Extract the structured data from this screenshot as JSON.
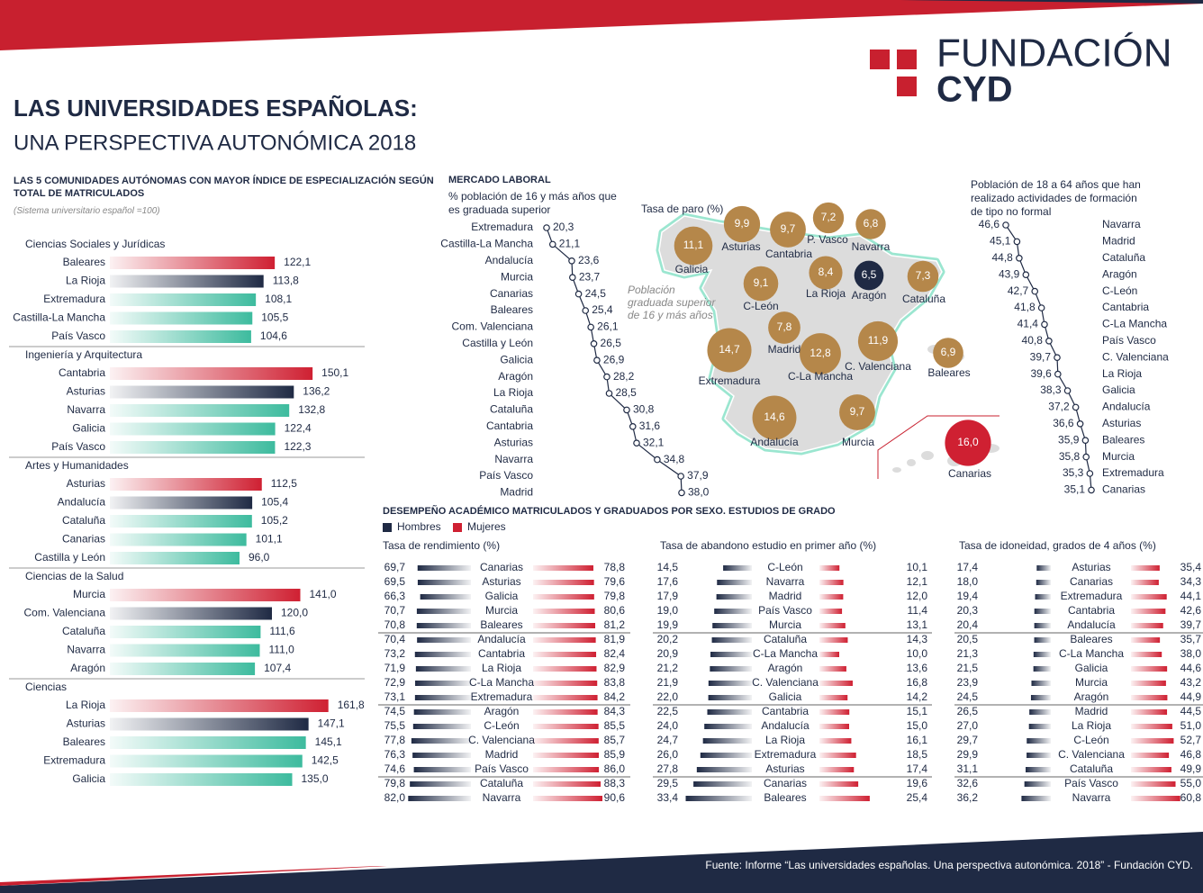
{
  "header": {
    "logo_line1": "FUNDACIÓN",
    "logo_line2": "CYD",
    "title": "LAS UNIVERSIDADES ESPAÑOLAS:",
    "subtitle": "UNA PERSPECTIVA AUTONÓMICA 2018"
  },
  "footer": {
    "source": "Fuente: Informe “Las universidades españolas. Una perspectiva autonómica. 2018” - Fundación CYD."
  },
  "chart_data": [
    {
      "type": "bar",
      "title": "LAS 5 COMUNIDADES AUTÓNOMAS CON MAYOR ÍNDICE DE ESPECIALIZACIÓN SEGÚN TOTAL DE MATRICULADOS",
      "note": "(Sistema universitario español =100)",
      "colors": [
        "#cf2032",
        "#1f2a44",
        "#3dbb9e",
        "#3dbb9e",
        "#3dbb9e"
      ],
      "groups": [
        {
          "name": "Ciencias Sociales y Jurídicas",
          "categories": [
            "Baleares",
            "La Rioja",
            "Extremadura",
            "Castilla-La Mancha",
            "País Vasco"
          ],
          "values": [
            122.1,
            113.8,
            108.1,
            105.5,
            104.6
          ],
          "value_labels": [
            "122,1",
            "113,8",
            "108,1",
            "105,5",
            "104,6"
          ]
        },
        {
          "name": "Ingeniería y Arquitectura",
          "categories": [
            "Cantabria",
            "Asturias",
            "Navarra",
            "Galicia",
            "País Vasco"
          ],
          "values": [
            150.1,
            136.2,
            132.8,
            122.4,
            122.3
          ],
          "value_labels": [
            "150,1",
            "136,2",
            "132,8",
            "122,4",
            "122,3"
          ]
        },
        {
          "name": "Artes y Humanidades",
          "categories": [
            "Asturias",
            "Andalucía",
            "Cataluña",
            "Canarias",
            "Castilla y León"
          ],
          "values": [
            112.5,
            105.4,
            105.2,
            101.1,
            96.0
          ],
          "value_labels": [
            "112,5",
            "105,4",
            "105,2",
            "101,1",
            "96,0"
          ]
        },
        {
          "name": "Ciencias de la Salud",
          "categories": [
            "Murcia",
            "Com. Valenciana",
            "Cataluña",
            "Navarra",
            "Aragón"
          ],
          "values": [
            141.0,
            120.0,
            111.6,
            111.0,
            107.4
          ],
          "value_labels": [
            "141,0",
            "120,0",
            "111,6",
            "111,0",
            "107,4"
          ]
        },
        {
          "name": "Ciencias",
          "categories": [
            "La Rioja",
            "Asturias",
            "Baleares",
            "Extremadura",
            "Galicia"
          ],
          "values": [
            161.8,
            147.1,
            145.1,
            142.5,
            135.0
          ],
          "value_labels": [
            "161,8",
            "147,1",
            "145,1",
            "142,5",
            "135,0"
          ]
        }
      ]
    },
    {
      "type": "line",
      "title": "MERCADO LABORAL",
      "subtitle": "% población de 16 y más años que es graduada superior",
      "color": "#1f2a44",
      "categories": [
        "Extremadura",
        "Castilla-La Mancha",
        "Andalucía",
        "Murcia",
        "Canarias",
        "Baleares",
        "Com. Valenciana",
        "Castilla y León",
        "Galicia",
        "Aragón",
        "La Rioja",
        "Cataluña",
        "Cantabria",
        "Asturias",
        "Navarra",
        "País Vasco",
        "Madrid"
      ],
      "values": [
        20.3,
        21.1,
        23.6,
        23.7,
        24.5,
        25.4,
        26.1,
        26.5,
        26.9,
        28.2,
        28.5,
        30.8,
        31.6,
        32.1,
        34.8,
        37.9,
        38.0
      ],
      "value_labels": [
        "20,3",
        "21,1",
        "23,6",
        "23,7",
        "24,5",
        "25,4",
        "26,1",
        "26,5",
        "26,9",
        "28,2",
        "28,5",
        "30,8",
        "31,6",
        "32,1",
        "34,8",
        "37,9",
        "38,0"
      ]
    },
    {
      "type": "bubble-map",
      "title": "Tasa de paro (%)",
      "annotation": "Población graduada superior de 16 y más años",
      "categories": [
        "Galicia",
        "Asturias",
        "Cantabria",
        "P. Vasco",
        "Navarra",
        "Cataluña",
        "Aragón",
        "La Rioja",
        "C-León",
        "Madrid",
        "Extremadura",
        "C-La Mancha",
        "C. Valenciana",
        "Baleares",
        "Andalucía",
        "Murcia",
        "Canarias"
      ],
      "values": [
        11.1,
        9.9,
        9.7,
        7.2,
        6.8,
        7.3,
        6.5,
        8.4,
        9.1,
        7.8,
        14.7,
        12.8,
        11.9,
        6.9,
        14.6,
        9.7,
        16.0
      ],
      "value_labels": [
        "11,1",
        "9,9",
        "9,7",
        "7,2",
        "6,8",
        "7,3",
        "6,5",
        "8,4",
        "9,1",
        "7,8",
        "14,7",
        "12,8",
        "11,9",
        "6,9",
        "14,6",
        "9,7",
        "16,0"
      ],
      "colors": [
        "#b5874a",
        "#b5874a",
        "#b5874a",
        "#b5874a",
        "#b5874a",
        "#b5874a",
        "#1f2a44",
        "#b5874a",
        "#b5874a",
        "#b5874a",
        "#b5874a",
        "#b5874a",
        "#b5874a",
        "#b5874a",
        "#b5874a",
        "#b5874a",
        "#cf2032"
      ]
    },
    {
      "type": "line",
      "title": "Población de 18 a 64 años que han realizado actividades de formación de tipo no formal",
      "color": "#1f2a44",
      "categories": [
        "Navarra",
        "Madrid",
        "Cataluña",
        "Aragón",
        "C-León",
        "Cantabria",
        "C-La Mancha",
        "País Vasco",
        "C. Valenciana",
        "La Rioja",
        "Galicia",
        "Andalucía",
        "Asturias",
        "Baleares",
        "Murcia",
        "Extremadura",
        "Canarias"
      ],
      "values": [
        46.6,
        45.1,
        44.8,
        43.9,
        42.7,
        41.8,
        41.4,
        40.8,
        39.7,
        39.6,
        38.3,
        37.2,
        36.6,
        35.9,
        35.8,
        35.3,
        35.1
      ],
      "value_labels": [
        "46,6",
        "45,1",
        "44,8",
        "43,9",
        "42,7",
        "41,8",
        "41,4",
        "40,8",
        "39,7",
        "39,6",
        "38,3",
        "37,2",
        "36,6",
        "35,9",
        "35,8",
        "35,3",
        "35,1"
      ]
    },
    {
      "type": "butterfly",
      "title": "DESEMPEÑO ACADÉMICO MATRICULADOS Y GRADUADOS POR SEXO. ESTUDIOS DE GRADO",
      "subtitle": "Tasa de rendimiento (%)",
      "categories": [
        "Canarias",
        "Asturias",
        "Galicia",
        "Murcia",
        "Baleares",
        "Andalucía",
        "Cantabria",
        "La Rioja",
        "C-La Mancha",
        "Extremadura",
        "Aragón",
        "C-León",
        "C. Valenciana",
        "Madrid",
        "País Vasco",
        "Cataluña",
        "Navarra"
      ],
      "series": [
        {
          "name": "Hombres",
          "color": "#1f2a44",
          "values": [
            69.7,
            69.5,
            66.3,
            70.7,
            70.8,
            70.4,
            73.2,
            71.9,
            72.9,
            73.1,
            74.5,
            75.5,
            77.8,
            76.3,
            74.6,
            79.8,
            82.0
          ],
          "value_labels": [
            "69,7",
            "69,5",
            "66,3",
            "70,7",
            "70,8",
            "70,4",
            "73,2",
            "71,9",
            "72,9",
            "73,1",
            "74,5",
            "75,5",
            "77,8",
            "76,3",
            "74,6",
            "79,8",
            "82,0"
          ]
        },
        {
          "name": "Mujeres",
          "color": "#cf2032",
          "values": [
            78.8,
            79.6,
            79.8,
            80.6,
            81.2,
            81.9,
            82.4,
            82.9,
            83.8,
            84.2,
            84.3,
            85.5,
            85.7,
            85.9,
            86.0,
            88.3,
            90.6
          ],
          "value_labels": [
            "78,8",
            "79,6",
            "79,8",
            "80,6",
            "81,2",
            "81,9",
            "82,4",
            "82,9",
            "83,8",
            "84,2",
            "84,3",
            "85,5",
            "85,7",
            "85,9",
            "86,0",
            "88,3",
            "90,6"
          ]
        }
      ]
    },
    {
      "type": "butterfly",
      "subtitle": "Tasa de abandono estudio en primer año (%)",
      "categories": [
        "C-León",
        "Navarra",
        "Madrid",
        "País Vasco",
        "Murcia",
        "Cataluña",
        "C-La Mancha",
        "Aragón",
        "C. Valenciana",
        "Galicia",
        "Cantabria",
        "Andalucía",
        "La Rioja",
        "Extremadura",
        "Asturias",
        "Canarias",
        "Baleares"
      ],
      "series": [
        {
          "color": "#1f2a44",
          "values": [
            14.5,
            17.6,
            17.9,
            19.0,
            19.9,
            20.2,
            20.9,
            21.2,
            21.9,
            22.0,
            22.5,
            24.0,
            24.7,
            26.0,
            27.8,
            29.5,
            33.4
          ],
          "value_labels": [
            "14,5",
            "17,6",
            "17,9",
            "19,0",
            "19,9",
            "20,2",
            "20,9",
            "21,2",
            "21,9",
            "22,0",
            "22,5",
            "24,0",
            "24,7",
            "26,0",
            "27,8",
            "29,5",
            "33,4"
          ]
        },
        {
          "color": "#cf2032",
          "values": [
            10.1,
            12.1,
            12.0,
            11.4,
            13.1,
            14.3,
            10.0,
            13.6,
            16.8,
            14.2,
            15.1,
            15.0,
            16.1,
            18.5,
            17.4,
            19.6,
            25.4
          ],
          "value_labels": [
            "10,1",
            "12,1",
            "12,0",
            "11,4",
            "13,1",
            "14,3",
            "10,0",
            "13,6",
            "16,8",
            "14,2",
            "15,1",
            "15,0",
            "16,1",
            "18,5",
            "17,4",
            "19,6",
            "25,4"
          ]
        }
      ]
    },
    {
      "type": "butterfly",
      "subtitle": "Tasa de idoneidad, grados de 4 años (%)",
      "categories": [
        "Asturias",
        "Canarias",
        "Extremadura",
        "Cantabria",
        "Andalucía",
        "Baleares",
        "C-La Mancha",
        "Galicia",
        "Murcia",
        "Aragón",
        "Madrid",
        "La Rioja",
        "C-León",
        "C. Valenciana",
        "Cataluña",
        "País Vasco",
        "Navarra"
      ],
      "series": [
        {
          "color": "#1f2a44",
          "values": [
            17.4,
            18.0,
            19.4,
            20.3,
            20.4,
            20.5,
            21.3,
            21.5,
            23.9,
            24.5,
            26.5,
            27.0,
            29.7,
            29.9,
            31.1,
            32.6,
            36.2
          ],
          "value_labels": [
            "17,4",
            "18,0",
            "19,4",
            "20,3",
            "20,4",
            "20,5",
            "21,3",
            "21,5",
            "23,9",
            "24,5",
            "26,5",
            "27,0",
            "29,7",
            "29,9",
            "31,1",
            "32,6",
            "36,2"
          ]
        },
        {
          "color": "#cf2032",
          "values": [
            35.4,
            34.3,
            44.1,
            42.6,
            39.7,
            35.7,
            38.0,
            44.6,
            43.2,
            44.9,
            44.5,
            51.0,
            52.7,
            46.8,
            49.9,
            55.0,
            60.8
          ],
          "value_labels": [
            "35,4",
            "34,3",
            "44,1",
            "42,6",
            "39,7",
            "35,7",
            "38,0",
            "44,6",
            "43,2",
            "44,9",
            "44,5",
            "51,0",
            "52,7",
            "46,8",
            "49,9",
            "55,0",
            "60,8"
          ]
        }
      ]
    }
  ]
}
